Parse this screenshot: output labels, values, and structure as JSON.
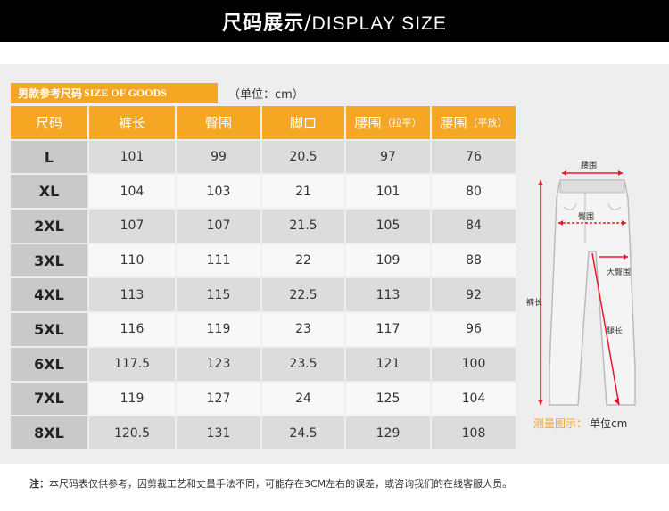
{
  "header": {
    "title_cn": "尺码展示",
    "separator": "/",
    "title_en": "DISPLAY SIZE"
  },
  "section": {
    "tag_cn": "男款参考尺码",
    "tag_en": "SIZE OF GOODS",
    "unit": "（单位：cm）"
  },
  "table": {
    "columns": [
      {
        "label": "尺码",
        "sub": ""
      },
      {
        "label": "裤长",
        "sub": ""
      },
      {
        "label": "臀围",
        "sub": ""
      },
      {
        "label": "脚口",
        "sub": ""
      },
      {
        "label": "腰围",
        "sub": "（拉平）"
      },
      {
        "label": "腰围",
        "sub": "（平放）"
      }
    ],
    "rows": [
      {
        "size": "L",
        "length": "101",
        "hip": "99",
        "hem": "20.5",
        "waist_stretch": "97",
        "waist_flat": "76"
      },
      {
        "size": "XL",
        "length": "104",
        "hip": "103",
        "hem": "21",
        "waist_stretch": "101",
        "waist_flat": "80"
      },
      {
        "size": "2XL",
        "length": "107",
        "hip": "107",
        "hem": "21.5",
        "waist_stretch": "105",
        "waist_flat": "84"
      },
      {
        "size": "3XL",
        "length": "110",
        "hip": "111",
        "hem": "22",
        "waist_stretch": "109",
        "waist_flat": "88"
      },
      {
        "size": "4XL",
        "length": "113",
        "hip": "115",
        "hem": "22.5",
        "waist_stretch": "113",
        "waist_flat": "92"
      },
      {
        "size": "5XL",
        "length": "116",
        "hip": "119",
        "hem": "23",
        "waist_stretch": "117",
        "waist_flat": "96"
      },
      {
        "size": "6XL",
        "length": "117.5",
        "hip": "123",
        "hem": "23.5",
        "waist_stretch": "121",
        "waist_flat": "100"
      },
      {
        "size": "7XL",
        "length": "119",
        "hip": "127",
        "hem": "24",
        "waist_stretch": "125",
        "waist_flat": "104"
      },
      {
        "size": "8XL",
        "length": "120.5",
        "hip": "131",
        "hem": "24.5",
        "waist_stretch": "129",
        "waist_flat": "108"
      }
    ]
  },
  "diagram": {
    "labels": {
      "waist": "腰围",
      "hip": "臀围",
      "thigh": "大臀围",
      "length": "裤长",
      "inseam": "腿长"
    },
    "legend_label": "测量图示：",
    "legend_unit": "单位cm",
    "accent": "#e8192c",
    "icon": "pants-measurement-diagram"
  },
  "footer": {
    "note_lead": "注：",
    "note_text": "本尺码表仅供参考，因剪裁工艺和丈量手法不同，可能存在3CM左右的误差，或咨询我们的在线客服人员。"
  },
  "colors": {
    "accent": "#f5a623",
    "header_bg": "#000000",
    "panel_bg": "#eeeeee"
  }
}
